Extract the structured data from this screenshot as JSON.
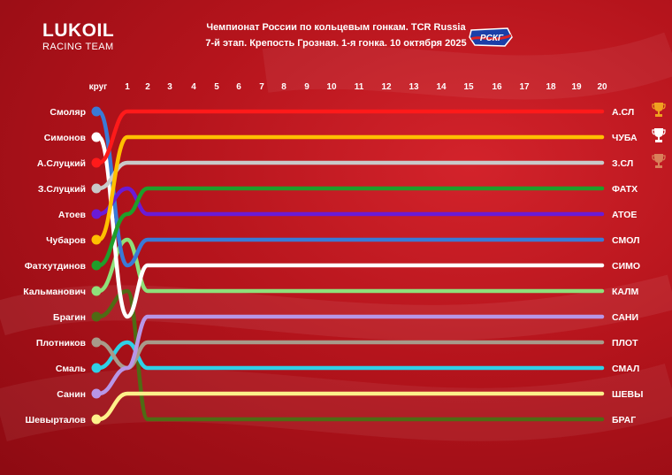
{
  "brand": {
    "name": "LUKOIL",
    "sub": "RACING TEAM"
  },
  "title_line1": "Чемпионат России по кольцевым гонкам. TCR Russia",
  "title_line2": "7-й этап. Крепость Грозная. 1-я гонка. 10 октября 2025",
  "rskg_logo_text": "РСКГ",
  "trophies": [
    "gold-cup-icon",
    "silver-cup-icon",
    "bronze-cup-icon"
  ],
  "chart_data": {
    "type": "line",
    "x_label": "круг",
    "laps": [
      1,
      2,
      3,
      4,
      5,
      6,
      7,
      8,
      9,
      10,
      11,
      12,
      13,
      14,
      15,
      16,
      17,
      18,
      19,
      20
    ],
    "start_labels": [
      "Смоляр",
      "Симонов",
      "А.Слуцкий",
      "З.Слуцкий",
      "Атоев",
      "Чубаров",
      "Фатхутдинов",
      "Кальманович",
      "Брагин",
      "Плотников",
      "Смаль",
      "Санин",
      "Шевырталов"
    ],
    "finish_labels": [
      "А.СЛ",
      "ЧУБА",
      "З.СЛ",
      "ФАТХ",
      "АТОЕ",
      "СМОЛ",
      "СИМО",
      "КАЛМ",
      "САНИ",
      "ПЛОТ",
      "СМАЛ",
      "ШЕВЫ",
      "БРАГ"
    ],
    "y_axis": "position",
    "series": [
      {
        "name": "А.СЛ",
        "color": "#ff1a1a",
        "positions": [
          3,
          1,
          1,
          1,
          1,
          1,
          1,
          1,
          1,
          1,
          1,
          1,
          1,
          1,
          1,
          1,
          1,
          1,
          1,
          1,
          1
        ]
      },
      {
        "name": "ЧУБА",
        "color": "#ffc000",
        "positions": [
          6,
          2,
          2,
          2,
          2,
          2,
          2,
          2,
          2,
          2,
          2,
          2,
          2,
          2,
          2,
          2,
          2,
          2,
          2,
          2,
          2
        ]
      },
      {
        "name": "З.СЛ",
        "color": "#c9c9c9",
        "positions": [
          4,
          3,
          3,
          3,
          3,
          3,
          3,
          3,
          3,
          3,
          3,
          3,
          3,
          3,
          3,
          3,
          3,
          3,
          3,
          3,
          3
        ]
      },
      {
        "name": "ФАТХ",
        "color": "#1f9e2a",
        "positions": [
          7,
          5,
          4,
          4,
          4,
          4,
          4,
          4,
          4,
          4,
          4,
          4,
          4,
          4,
          4,
          4,
          4,
          4,
          4,
          4,
          4
        ]
      },
      {
        "name": "АТОЕ",
        "color": "#6a1bd6",
        "positions": [
          5,
          4,
          5,
          5,
          5,
          5,
          5,
          5,
          5,
          5,
          5,
          5,
          5,
          5,
          5,
          5,
          5,
          5,
          5,
          5,
          5
        ]
      },
      {
        "name": "СМОЛ",
        "color": "#3a7ad6",
        "positions": [
          1,
          7,
          6,
          6,
          6,
          6,
          6,
          6,
          6,
          6,
          6,
          6,
          6,
          6,
          6,
          6,
          6,
          6,
          6,
          6,
          6
        ]
      },
      {
        "name": "СИМО",
        "color": "#ffffff",
        "positions": [
          2,
          9,
          7,
          7,
          7,
          7,
          7,
          7,
          7,
          7,
          7,
          7,
          7,
          7,
          7,
          7,
          7,
          7,
          7,
          7,
          7
        ]
      },
      {
        "name": "КАЛМ",
        "color": "#8fe07a",
        "positions": [
          8,
          6,
          8,
          8,
          8,
          8,
          8,
          8,
          8,
          8,
          8,
          8,
          8,
          8,
          8,
          8,
          8,
          8,
          8,
          8,
          8
        ]
      },
      {
        "name": "САНИ",
        "color": "#b896e6",
        "positions": [
          12,
          11,
          9,
          9,
          9,
          9,
          9,
          9,
          9,
          9,
          9,
          9,
          9,
          9,
          9,
          9,
          9,
          9,
          9,
          9,
          9
        ]
      },
      {
        "name": "ПЛОТ",
        "color": "#a89a8a",
        "positions": [
          10,
          11,
          10,
          10,
          10,
          10,
          10,
          10,
          10,
          10,
          10,
          10,
          10,
          10,
          10,
          10,
          10,
          10,
          10,
          10,
          10
        ]
      },
      {
        "name": "СМАЛ",
        "color": "#2fd0e6",
        "positions": [
          11,
          10,
          11,
          11,
          11,
          11,
          11,
          11,
          11,
          11,
          11,
          11,
          11,
          11,
          11,
          11,
          11,
          11,
          11,
          11,
          11
        ]
      },
      {
        "name": "ШЕВЫ",
        "color": "#fff08a",
        "positions": [
          13,
          12,
          12,
          12,
          12,
          12,
          12,
          12,
          12,
          12,
          12,
          12,
          12,
          12,
          12,
          12,
          12,
          12,
          12,
          12,
          12
        ]
      },
      {
        "name": "БРАГ",
        "color": "#4f6b14",
        "positions": [
          9,
          8,
          13,
          13,
          13,
          13,
          13,
          13,
          13,
          13,
          13,
          13,
          13,
          13,
          13,
          13,
          13,
          13,
          13,
          13,
          13
        ]
      }
    ]
  }
}
